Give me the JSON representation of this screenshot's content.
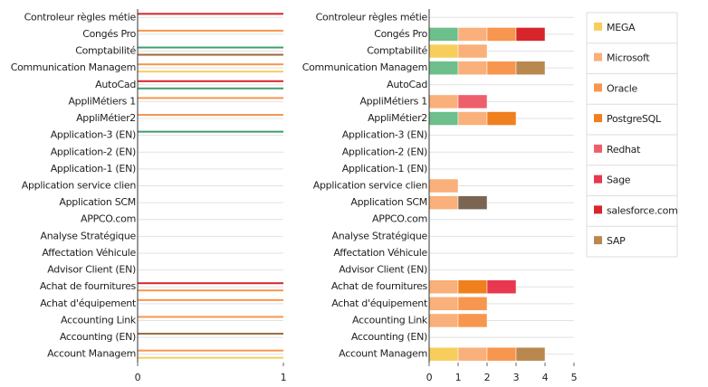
{
  "chart_data": [
    {
      "type": "line-bar",
      "xlim": [
        0,
        1
      ],
      "xticks": [
        0,
        1
      ],
      "grid": true,
      "categories": [
        "Controleur règles métie",
        "Congés Pro",
        "Comptabilité",
        "Communication Managem",
        "AutoCad",
        "AppliMétiers 1",
        "AppliMétier2",
        "Application-3 (EN)",
        "Application-2 (EN)",
        "Application-1 (EN)",
        "Application service clien",
        "Application SCM",
        "APPCO.com",
        "Analyse Stratégique",
        "Affectation Véhicule",
        "Advisor Client (EN)",
        "Achat de fournitures",
        "Achat d'équipement",
        "Accounting Link",
        "Accounting (EN)",
        "Account Managem"
      ],
      "series": [
        {
          "color": "#d7262b",
          "values": [
            1,
            null,
            null,
            null,
            1,
            null,
            null,
            null,
            null,
            null,
            null,
            null,
            null,
            null,
            null,
            null,
            1,
            null,
            null,
            null,
            null
          ]
        },
        {
          "color": "#f7964f",
          "values": [
            null,
            1,
            null,
            1,
            null,
            1,
            1,
            null,
            null,
            null,
            null,
            null,
            null,
            null,
            null,
            null,
            1,
            1,
            1,
            null,
            1
          ]
        },
        {
          "color": "#3f9e6a",
          "values": [
            null,
            null,
            1,
            null,
            1,
            null,
            null,
            1,
            null,
            null,
            null,
            null,
            null,
            null,
            null,
            null,
            null,
            null,
            null,
            null,
            null
          ]
        },
        {
          "color": "#f7ce5b",
          "values": [
            null,
            null,
            null,
            1,
            null,
            null,
            null,
            null,
            null,
            null,
            null,
            null,
            null,
            null,
            null,
            null,
            null,
            null,
            null,
            null,
            1
          ]
        },
        {
          "color": "#9c6a3c",
          "values": [
            null,
            null,
            1,
            null,
            null,
            null,
            null,
            null,
            null,
            null,
            null,
            null,
            null,
            null,
            null,
            null,
            null,
            null,
            null,
            1,
            null
          ]
        }
      ]
    },
    {
      "type": "stacked-bar",
      "xlim": [
        0,
        5
      ],
      "xticks": [
        0,
        1,
        2,
        3,
        4,
        5
      ],
      "grid": true,
      "legend": "right",
      "categories": [
        "Controleur règles métie",
        "Congés Pro",
        "Comptabilité",
        "Communication Managem",
        "AutoCad",
        "AppliMétiers 1",
        "AppliMétier2",
        "Application-3 (EN)",
        "Application-2 (EN)",
        "Application-1 (EN)",
        "Application service clien",
        "Application SCM",
        "APPCO.com",
        "Analyse Stratégique",
        "Affectation Véhicule",
        "Advisor Client (EN)",
        "Achat de fournitures",
        "Achat d'équipement",
        "Accounting Link",
        "Accounting (EN)",
        "Account Managem"
      ],
      "series": [
        {
          "color": "#6dbf8b",
          "values": [
            0,
            1,
            0,
            1,
            0,
            0,
            1,
            0,
            0,
            0,
            0,
            0,
            0,
            0,
            0,
            0,
            0,
            0,
            0,
            0,
            0
          ]
        },
        {
          "name": "MEGA",
          "color": "#f7ce5b",
          "values": [
            0,
            0,
            1,
            0,
            0,
            0,
            0,
            0,
            0,
            0,
            0,
            0,
            0,
            0,
            0,
            0,
            0,
            0,
            0,
            0,
            1
          ]
        },
        {
          "name": "Microsoft",
          "color": "#f9b07a",
          "values": [
            0,
            1,
            1,
            1,
            0,
            1,
            1,
            0,
            0,
            0,
            1,
            1,
            0,
            0,
            0,
            0,
            1,
            1,
            1,
            0,
            1
          ]
        },
        {
          "name": "Oracle",
          "color": "#f7964f",
          "values": [
            0,
            1,
            0,
            1,
            0,
            0,
            0,
            0,
            0,
            0,
            0,
            0,
            0,
            0,
            0,
            0,
            0,
            1,
            1,
            0,
            1
          ]
        },
        {
          "name": "PostgreSQL",
          "color": "#f07f1e",
          "values": [
            0,
            0,
            0,
            0,
            0,
            0,
            1,
            0,
            0,
            0,
            0,
            0,
            0,
            0,
            0,
            0,
            1,
            0,
            0,
            0,
            0
          ]
        },
        {
          "name": "Redhat",
          "color": "#ee5f6c",
          "values": [
            0,
            0,
            0,
            0,
            0,
            1,
            0,
            0,
            0,
            0,
            0,
            0,
            0,
            0,
            0,
            0,
            0,
            0,
            0,
            0,
            0
          ]
        },
        {
          "name": "Sage",
          "color": "#e8384f",
          "values": [
            0,
            0,
            0,
            0,
            0,
            0,
            0,
            0,
            0,
            0,
            0,
            0,
            0,
            0,
            0,
            0,
            1,
            0,
            0,
            0,
            0
          ]
        },
        {
          "name": "salesforce.com",
          "color": "#d7262b",
          "values": [
            0,
            1,
            0,
            0,
            0,
            0,
            0,
            0,
            0,
            0,
            0,
            0,
            0,
            0,
            0,
            0,
            0,
            0,
            0,
            0,
            0
          ]
        },
        {
          "name": "SAP",
          "color": "#b9884e",
          "values": [
            0,
            0,
            0,
            1,
            0,
            0,
            0,
            0,
            0,
            0,
            0,
            0,
            0,
            0,
            0,
            0,
            0,
            0,
            0,
            0,
            1
          ]
        },
        {
          "color": "#7a6553",
          "values": [
            0,
            0,
            0,
            0,
            0,
            0,
            0,
            0,
            0,
            0,
            0,
            1,
            0,
            0,
            0,
            0,
            0,
            0,
            0,
            0,
            0
          ]
        }
      ]
    }
  ]
}
